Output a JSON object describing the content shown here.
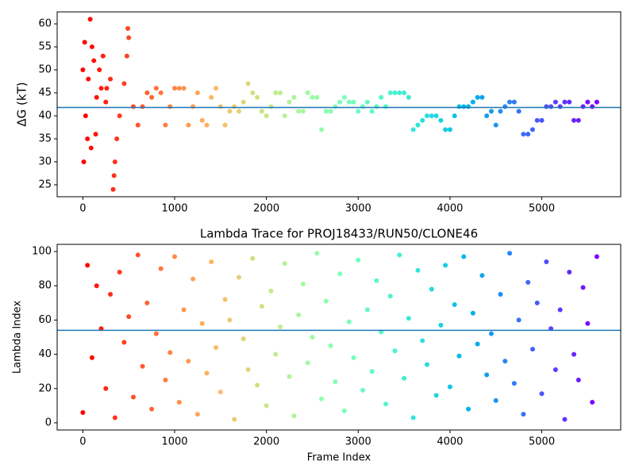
{
  "chart_data": [
    {
      "type": "scatter",
      "ylabel": "ΔG (kT)",
      "colormap": "rainbow",
      "x": [
        0,
        50,
        100,
        150,
        200,
        250,
        300,
        350,
        400,
        450,
        500,
        550,
        600,
        650,
        700,
        750,
        800,
        850,
        900,
        950,
        1000,
        1050,
        1100,
        1150,
        1200,
        1250,
        1300,
        1350,
        1400,
        1450,
        1500,
        1550,
        1600,
        1650,
        1700,
        1750,
        1800,
        1850,
        1900,
        1950,
        2000,
        2050,
        2100,
        2150,
        2200,
        2250,
        2300,
        2350,
        2400,
        2450,
        2500,
        2550,
        2600,
        2650,
        2700,
        2750,
        2800,
        2850,
        2900,
        2950,
        3000,
        3050,
        3100,
        3150,
        3200,
        3250,
        3300,
        3350,
        3400,
        3450,
        3500,
        3550,
        3600,
        3650,
        3700,
        3750,
        3800,
        3850,
        3900,
        3950,
        4000,
        4050,
        4100,
        4150,
        4200,
        4250,
        4300,
        4350,
        4400,
        4450,
        4500,
        4550,
        4600,
        4650,
        4700,
        4750,
        4800,
        4850,
        4900,
        4950,
        5000,
        5050,
        5100,
        5150,
        5200,
        5250,
        5300,
        5350,
        5400,
        5450,
        5500,
        5550,
        5600,
        10,
        20,
        30,
        60,
        80,
        90,
        120,
        140,
        180,
        220,
        260,
        330,
        340,
        370,
        480,
        490
      ],
      "values": [
        50,
        35,
        55,
        44,
        46,
        43,
        48,
        30,
        40,
        47,
        57,
        42,
        38,
        42,
        45,
        44,
        46,
        45,
        38,
        42,
        46,
        46,
        46,
        38,
        42,
        45,
        39,
        38,
        44,
        46,
        42,
        38,
        41,
        42,
        41,
        43,
        47,
        45,
        44,
        41,
        40,
        42,
        45,
        45,
        40,
        43,
        44,
        41,
        41,
        45,
        44,
        44,
        37,
        41,
        41,
        42,
        43,
        44,
        43,
        43,
        41,
        42,
        43,
        41,
        42,
        44,
        42,
        45,
        45,
        45,
        45,
        44,
        37,
        38,
        39,
        40,
        40,
        40,
        39,
        37,
        37,
        40,
        42,
        42,
        42,
        43,
        44,
        44,
        40,
        41,
        38,
        41,
        42,
        43,
        43,
        41,
        36,
        36,
        37,
        39,
        39,
        42,
        42,
        43,
        42,
        43,
        43,
        39,
        39,
        42,
        43,
        42,
        43,
        30,
        56,
        40,
        48,
        61,
        33,
        52,
        36,
        50,
        53,
        46,
        24,
        27,
        35,
        53,
        59
      ],
      "xlim": [
        -280,
        5860
      ],
      "ylim": [
        22.4,
        62.6
      ],
      "xticks": [
        0,
        1000,
        2000,
        3000,
        4000,
        5000
      ],
      "yticks": [
        25,
        30,
        35,
        40,
        45,
        50,
        55,
        60
      ],
      "hline": 41.8,
      "hline_color": "#1f77b4"
    },
    {
      "type": "scatter",
      "title": "Lambda Trace for PROJ18433/RUN50/CLONE46",
      "xlabel": "Frame Index",
      "ylabel": "Lambda Index",
      "colormap": "rainbow",
      "x": [
        0,
        50,
        100,
        150,
        200,
        250,
        300,
        350,
        400,
        450,
        500,
        550,
        600,
        650,
        700,
        750,
        800,
        850,
        900,
        950,
        1000,
        1050,
        1100,
        1150,
        1200,
        1250,
        1300,
        1350,
        1400,
        1450,
        1500,
        1550,
        1600,
        1650,
        1700,
        1750,
        1800,
        1850,
        1900,
        1950,
        2000,
        2050,
        2100,
        2150,
        2200,
        2250,
        2300,
        2350,
        2400,
        2450,
        2500,
        2550,
        2600,
        2650,
        2700,
        2750,
        2800,
        2850,
        2900,
        2950,
        3000,
        3050,
        3100,
        3150,
        3200,
        3250,
        3300,
        3350,
        3400,
        3450,
        3500,
        3550,
        3600,
        3650,
        3700,
        3750,
        3800,
        3850,
        3900,
        3950,
        4000,
        4050,
        4100,
        4150,
        4200,
        4250,
        4300,
        4350,
        4400,
        4450,
        4500,
        4550,
        4600,
        4650,
        4700,
        4750,
        4800,
        4850,
        4900,
        4950,
        5000,
        5050,
        5100,
        5150,
        5200,
        5250,
        5300,
        5350,
        5400,
        5450,
        5500,
        5550,
        5600
      ],
      "values": [
        6,
        92,
        38,
        80,
        55,
        20,
        75,
        3,
        88,
        47,
        62,
        15,
        98,
        33,
        70,
        8,
        52,
        90,
        25,
        41,
        97,
        12,
        66,
        36,
        84,
        5,
        58,
        29,
        94,
        44,
        18,
        72,
        60,
        2,
        85,
        49,
        31,
        96,
        22,
        68,
        10,
        77,
        40,
        56,
        93,
        27,
        4,
        63,
        81,
        35,
        50,
        99,
        14,
        71,
        45,
        24,
        87,
        7,
        59,
        38,
        95,
        19,
        66,
        30,
        83,
        53,
        11,
        74,
        42,
        98,
        26,
        61,
        3,
        89,
        48,
        34,
        78,
        16,
        57,
        92,
        21,
        69,
        39,
        97,
        8,
        64,
        46,
        86,
        28,
        52,
        13,
        75,
        36,
        99,
        23,
        60,
        5,
        82,
        43,
        70,
        17,
        94,
        55,
        31,
        66,
        2,
        88,
        40,
        25,
        79,
        58,
        12,
        97
      ],
      "xlim": [
        -280,
        5860
      ],
      "ylim": [
        -4.2,
        104.2
      ],
      "xticks": [
        0,
        1000,
        2000,
        3000,
        4000,
        5000
      ],
      "yticks": [
        0,
        20,
        40,
        60,
        80,
        100
      ],
      "hline": 54,
      "hline_color": "#1f77b4"
    }
  ]
}
